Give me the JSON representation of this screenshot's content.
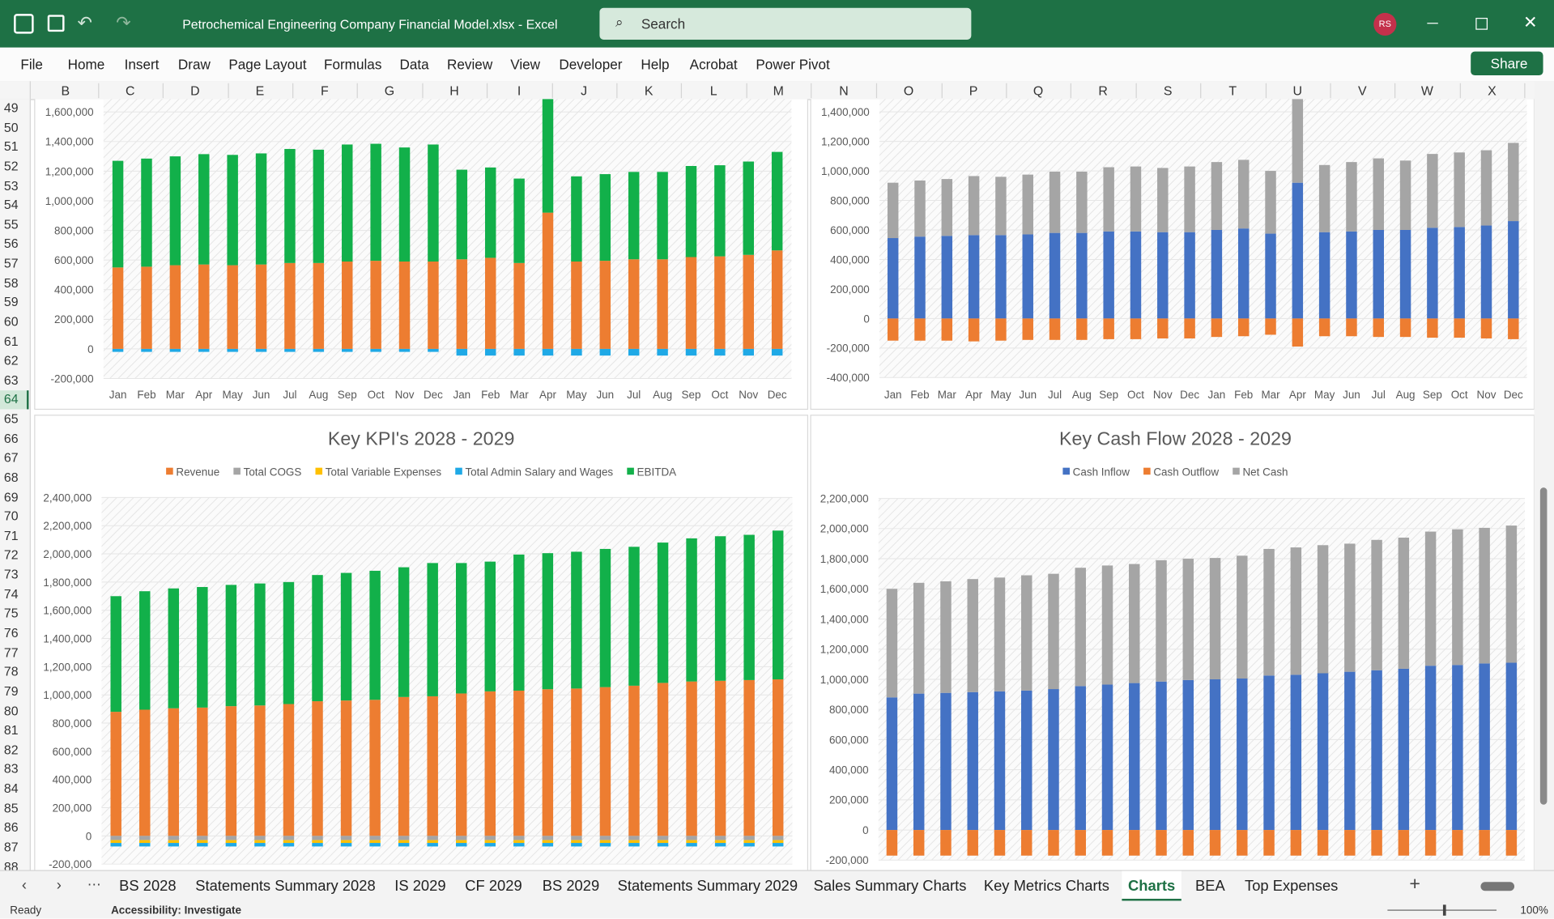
{
  "window": {
    "file_title": "Petrochemical Engineering Company Financial Model.xlsx  -  Excel",
    "search": "Search",
    "user_initials": "RS"
  },
  "ribbon_tabs": [
    "File",
    "Home",
    "Insert",
    "Draw",
    "Page Layout",
    "Formulas",
    "Data",
    "Review",
    "View",
    "Developer",
    "Help",
    "Acrobat",
    "Power Pivot"
  ],
  "share": "Share",
  "columns": [
    "B",
    "C",
    "D",
    "E",
    "F",
    "G",
    "H",
    "I",
    "J",
    "K",
    "L",
    "M",
    "N",
    "O",
    "P",
    "Q",
    "R",
    "S",
    "T",
    "U",
    "V",
    "W",
    "X"
  ],
  "rows": [
    49,
    50,
    51,
    52,
    53,
    54,
    55,
    56,
    57,
    58,
    59,
    60,
    61,
    62,
    63,
    64,
    65,
    66,
    67,
    68,
    69,
    70,
    71,
    72,
    73,
    74,
    75,
    76,
    77,
    78,
    79,
    80,
    81,
    82,
    83,
    84,
    85,
    86,
    87,
    88
  ],
  "sheet_tabs": [
    "BS 2028",
    "Statements Summary 2028",
    "IS 2029",
    "CF 2029",
    "BS 2029",
    "Statements Summary 2029",
    "Sales Summary Charts",
    "Key Metrics Charts",
    "Charts",
    "BEA",
    "Top Expenses"
  ],
  "active_sheet": "Charts",
  "status": {
    "ready": "Ready",
    "accessibility": "Accessibility: Investigate",
    "zoom": "100%"
  },
  "chart_data": [
    {
      "type": "stacked_bar",
      "categories": [
        "Jan",
        "Feb",
        "Mar",
        "Apr",
        "May",
        "Jun",
        "Jul",
        "Aug",
        "Sep",
        "Oct",
        "Nov",
        "Dec",
        "Jan",
        "Feb",
        "Mar",
        "Apr",
        "May",
        "Jun",
        "Jul",
        "Aug",
        "Sep",
        "Oct",
        "Nov",
        "Dec"
      ],
      "series": [
        {
          "color": "#ed7d31",
          "values": [
            550000,
            555000,
            565000,
            570000,
            565000,
            570000,
            580000,
            580000,
            590000,
            595000,
            590000,
            590000,
            605000,
            615000,
            580000,
            920000,
            590000,
            595000,
            605000,
            605000,
            620000,
            625000,
            635000,
            665000
          ]
        },
        {
          "color": "#1fa9e6",
          "values": [
            -20000,
            -20000,
            -20000,
            -20000,
            -20000,
            -20000,
            -20000,
            -20000,
            -20000,
            -20000,
            -20000,
            -20000,
            -45000,
            -45000,
            -45000,
            -45000,
            -45000,
            -45000,
            -45000,
            -45000,
            -45000,
            -45000,
            -45000,
            -45000
          ]
        },
        {
          "color": "#12b04a",
          "values": [
            720000,
            730000,
            735000,
            745000,
            745000,
            750000,
            770000,
            765000,
            790000,
            790000,
            770000,
            790000,
            605000,
            610000,
            570000,
            780000,
            575000,
            585000,
            590000,
            590000,
            615000,
            615000,
            630000,
            665000
          ]
        }
      ],
      "ylim": [
        -200000,
        1700000
      ],
      "yticks": [
        {
          "value": -200000,
          "label": "-200,000"
        },
        0,
        {
          "value": 200000,
          "label": "200,000"
        },
        {
          "value": 400000,
          "label": "400,000"
        },
        {
          "value": 600000,
          "label": "600,000"
        },
        {
          "value": 800000,
          "label": "800,000"
        },
        {
          "value": 1000000,
          "label": "1,000,000"
        },
        {
          "value": 1200000,
          "label": "1,200,000"
        },
        {
          "value": 1400000,
          "label": "1,400,000"
        },
        {
          "value": 1600000,
          "label": "1,600,000"
        }
      ],
      "grid": true
    },
    {
      "type": "stacked_bar",
      "categories": [
        "Jan",
        "Feb",
        "Mar",
        "Apr",
        "May",
        "Jun",
        "Jul",
        "Aug",
        "Sep",
        "Oct",
        "Nov",
        "Dec",
        "Jan",
        "Feb",
        "Mar",
        "Apr",
        "May",
        "Jun",
        "Jul",
        "Aug",
        "Sep",
        "Oct",
        "Nov",
        "Dec"
      ],
      "series": [
        {
          "color": "#4472c4",
          "values": [
            545000,
            555000,
            560000,
            565000,
            565000,
            570000,
            580000,
            580000,
            590000,
            590000,
            585000,
            585000,
            600000,
            610000,
            575000,
            920000,
            585000,
            590000,
            600000,
            600000,
            615000,
            620000,
            630000,
            660000
          ]
        },
        {
          "color": "#ed7d31",
          "values": [
            -150000,
            -150000,
            -150000,
            -155000,
            -150000,
            -145000,
            -145000,
            -145000,
            -140000,
            -140000,
            -135000,
            -135000,
            -125000,
            -120000,
            -110000,
            -190000,
            -120000,
            -120000,
            -125000,
            -125000,
            -130000,
            -130000,
            -135000,
            -140000
          ]
        },
        {
          "color": "#a5a5a5",
          "values": [
            375000,
            380000,
            385000,
            400000,
            395000,
            405000,
            415000,
            415000,
            435000,
            440000,
            435000,
            445000,
            460000,
            465000,
            425000,
            600000,
            455000,
            470000,
            485000,
            470000,
            500000,
            505000,
            510000,
            530000
          ]
        }
      ],
      "ylim": [
        -400000,
        1500000
      ],
      "yticks": [
        {
          "value": -400000,
          "label": "-400,000"
        },
        {
          "value": -200000,
          "label": "-200,000"
        },
        0,
        {
          "value": 200000,
          "label": "200,000"
        },
        {
          "value": 400000,
          "label": "400,000"
        },
        {
          "value": 600000,
          "label": "600,000"
        },
        {
          "value": 800000,
          "label": "800,000"
        },
        {
          "value": 1000000,
          "label": "1,000,000"
        },
        {
          "value": 1200000,
          "label": "1,200,000"
        },
        {
          "value": 1400000,
          "label": "1,400,000"
        }
      ],
      "grid": true
    },
    {
      "type": "stacked_bar",
      "title": "Key KPI's 2028 - 2029",
      "series": [
        {
          "name": "Revenue",
          "color": "#ed7d31",
          "values": [
            880000,
            895000,
            905000,
            910000,
            920000,
            925000,
            935000,
            955000,
            960000,
            965000,
            985000,
            990000,
            1010000,
            1025000,
            1030000,
            1040000,
            1045000,
            1055000,
            1065000,
            1085000,
            1095000,
            1100000,
            1105000,
            1110000
          ]
        },
        {
          "name": "Total COGS",
          "color": "#a5a5a5",
          "values": [
            -30000,
            -30000,
            -30000,
            -30000,
            -30000,
            -30000,
            -30000,
            -30000,
            -30000,
            -30000,
            -30000,
            -30000,
            -30000,
            -30000,
            -30000,
            -30000,
            -30000,
            -30000,
            -30000,
            -30000,
            -30000,
            -30000,
            -30000,
            -30000
          ]
        },
        {
          "name": "Total Variable Expenses",
          "color": "#ffc000",
          "values": [
            -20000,
            -20000,
            -20000,
            -20000,
            -20000,
            -20000,
            -20000,
            -20000,
            -20000,
            -20000,
            -20000,
            -20000,
            -20000,
            -20000,
            -20000,
            -20000,
            -20000,
            -20000,
            -20000,
            -20000,
            -20000,
            -20000,
            -20000,
            -20000
          ]
        },
        {
          "name": "Total Admin Salary and Wages",
          "color": "#1fa9e6",
          "values": [
            -25000,
            -25000,
            -25000,
            -25000,
            -25000,
            -25000,
            -25000,
            -25000,
            -25000,
            -25000,
            -25000,
            -25000,
            -25000,
            -25000,
            -25000,
            -25000,
            -25000,
            -25000,
            -25000,
            -25000,
            -25000,
            -25000,
            -25000,
            -25000
          ]
        },
        {
          "name": "EBITDA",
          "color": "#12b04a",
          "values": [
            820000,
            840000,
            850000,
            855000,
            860000,
            865000,
            865000,
            895000,
            905000,
            915000,
            920000,
            945000,
            925000,
            920000,
            965000,
            965000,
            970000,
            980000,
            985000,
            995000,
            1015000,
            1025000,
            1030000,
            1055000
          ]
        }
      ],
      "ylim": [
        -200000,
        2400000
      ],
      "yticks": [
        {
          "value": -200000,
          "label": "-200,000"
        },
        0,
        {
          "value": 200000,
          "label": "200,000"
        },
        {
          "value": 400000,
          "label": "400,000"
        },
        {
          "value": 600000,
          "label": "600,000"
        },
        {
          "value": 800000,
          "label": "800,000"
        },
        {
          "value": 1000000,
          "label": "1,000,000"
        },
        {
          "value": 1200000,
          "label": "1,200,000"
        },
        {
          "value": 1400000,
          "label": "1,400,000"
        },
        {
          "value": 1600000,
          "label": "1,600,000"
        },
        {
          "value": 1800000,
          "label": "1,800,000"
        },
        {
          "value": 2000000,
          "label": "2,000,000"
        },
        {
          "value": 2200000,
          "label": "2,200,000"
        },
        {
          "value": 2400000,
          "label": "2,400,000"
        }
      ],
      "grid": true,
      "legend": "top"
    },
    {
      "type": "stacked_bar",
      "title": "Key Cash Flow 2028 - 2029",
      "series": [
        {
          "name": "Cash Inflow",
          "color": "#4472c4",
          "values": [
            880000,
            905000,
            910000,
            915000,
            920000,
            925000,
            935000,
            955000,
            965000,
            975000,
            985000,
            995000,
            1000000,
            1005000,
            1025000,
            1030000,
            1040000,
            1050000,
            1060000,
            1070000,
            1090000,
            1095000,
            1105000,
            1110000
          ]
        },
        {
          "name": "Cash Outflow",
          "color": "#ed7d31",
          "values": [
            -170000,
            -170000,
            -170000,
            -170000,
            -170000,
            -170000,
            -170000,
            -170000,
            -170000,
            -170000,
            -170000,
            -170000,
            -170000,
            -170000,
            -170000,
            -170000,
            -170000,
            -170000,
            -170000,
            -170000,
            -170000,
            -170000,
            -170000,
            -170000
          ]
        },
        {
          "name": "Net Cash",
          "color": "#a5a5a5",
          "values": [
            720000,
            735000,
            740000,
            750000,
            755000,
            765000,
            765000,
            785000,
            790000,
            790000,
            805000,
            805000,
            805000,
            815000,
            840000,
            845000,
            850000,
            850000,
            865000,
            870000,
            890000,
            900000,
            900000,
            910000
          ]
        }
      ],
      "ylim": [
        -200000,
        2200000
      ],
      "yticks": [
        {
          "value": -200000,
          "label": "-200,000"
        },
        0,
        {
          "value": 200000,
          "label": "200,000"
        },
        {
          "value": 400000,
          "label": "400,000"
        },
        {
          "value": 600000,
          "label": "600,000"
        },
        {
          "value": 800000,
          "label": "800,000"
        },
        {
          "value": 1000000,
          "label": "1,000,000"
        },
        {
          "value": 1200000,
          "label": "1,200,000"
        },
        {
          "value": 1400000,
          "label": "1,400,000"
        },
        {
          "value": 1600000,
          "label": "1,600,000"
        },
        {
          "value": 1800000,
          "label": "1,800,000"
        },
        {
          "value": 2000000,
          "label": "2,000,000"
        },
        {
          "value": 2200000,
          "label": "2,200,000"
        }
      ],
      "grid": true,
      "legend": "top"
    }
  ]
}
